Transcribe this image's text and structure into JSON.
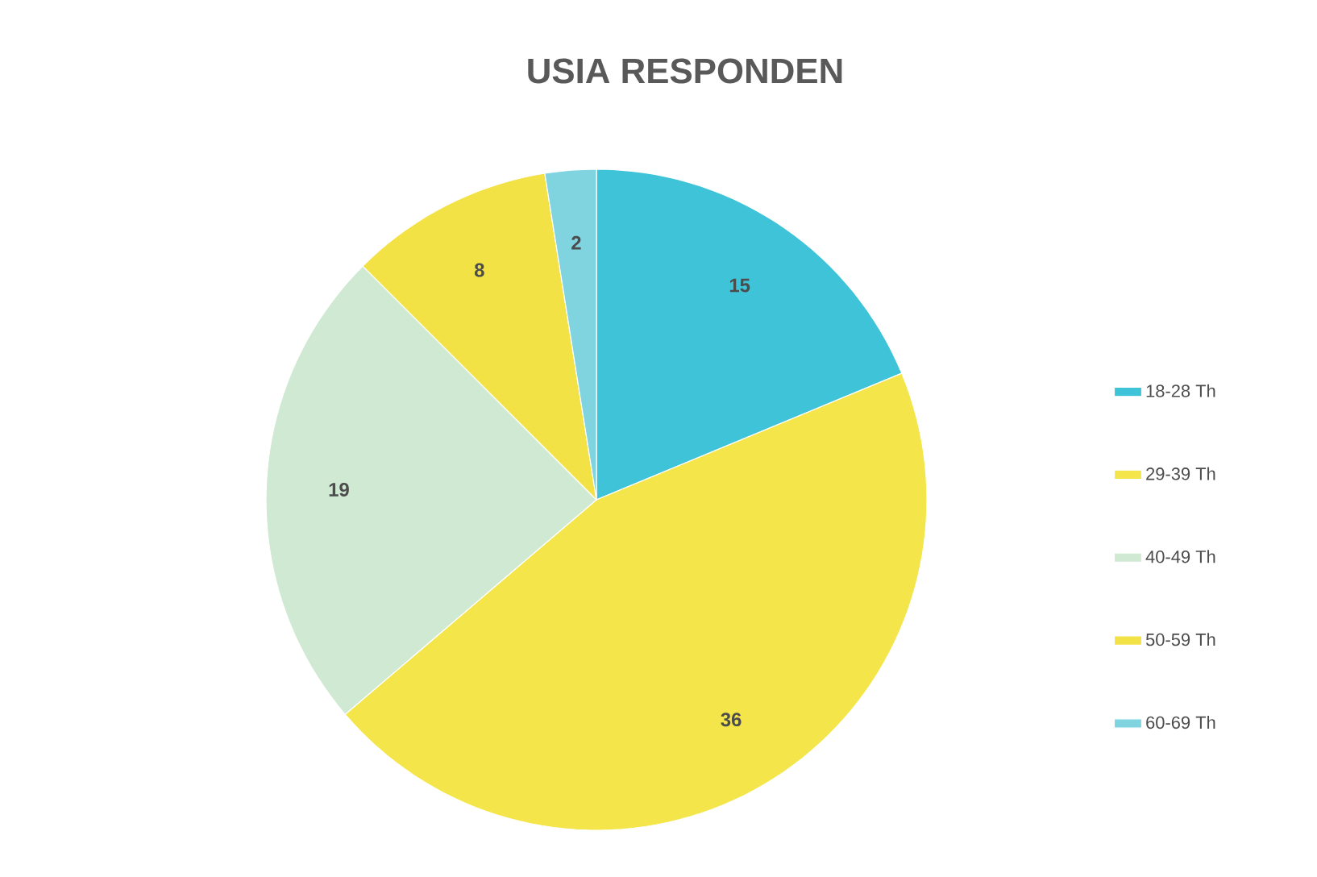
{
  "chart_data": {
    "type": "pie",
    "title": "USIA RESPONDEN",
    "categories": [
      "18-28 Th",
      "29-39 Th",
      "40-49 Th",
      "50-59 Th",
      "60-69 Th"
    ],
    "values": [
      15,
      36,
      19,
      8,
      2
    ],
    "colors": [
      "#3ec3d8",
      "#f4e64a",
      "#cfe9d3",
      "#f3e246",
      "#7fd4e0"
    ],
    "data_labels": true,
    "legend": "right"
  }
}
